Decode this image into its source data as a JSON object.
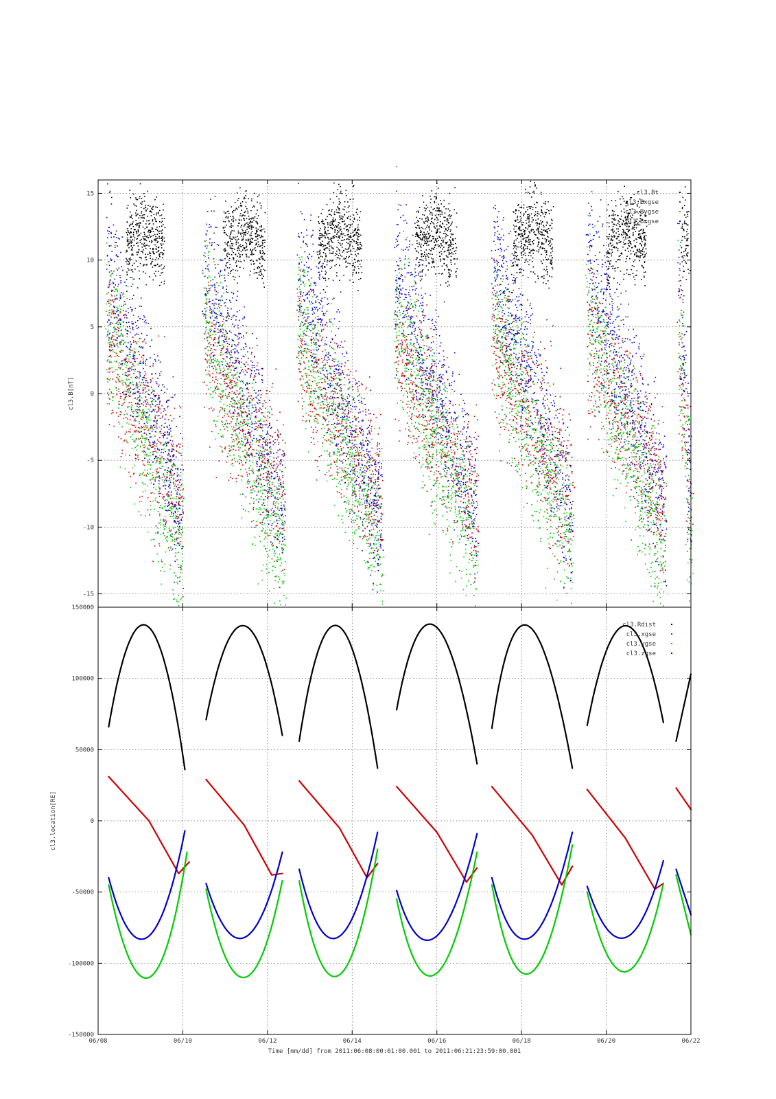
{
  "figure": {
    "top_mark": "-",
    "xlabel": "Time [mm/dd]  from 2011:06:08:00:01:00.001  to  2011:06:21:23:59:00.001",
    "xticks": [
      "06/08",
      "06/10",
      "06/12",
      "06/14",
      "06/16",
      "06/18",
      "06/20",
      "06/22"
    ]
  },
  "colors": {
    "black": "#000000",
    "red": "#cc0000",
    "green": "#00cc00",
    "blue": "#0000cc",
    "grid": "#555555"
  },
  "chart_data": [
    {
      "type": "scatter",
      "ylabel": "cl3.B[nT]",
      "x_range_days": [
        "2011-06-08",
        "2011-06-22"
      ],
      "ylim": [
        -16,
        16
      ],
      "yticks": [
        "15",
        "10",
        "5",
        "0",
        "-5",
        "-10",
        "-15"
      ],
      "ytick_values": [
        15,
        10,
        5,
        0,
        -5,
        -10,
        -15
      ],
      "grid": true,
      "legend_placement": "top-right",
      "legend": [
        "cl3.Bt",
        "cl3.Bxgse",
        "cl3.Bygse",
        "cl3.Bzgse"
      ],
      "series": [
        {
          "color": "black"
        },
        {
          "color": "red"
        },
        {
          "color": "green"
        },
        {
          "color": "blue"
        }
      ],
      "note": "dense per-minute samples; visible bursts roughly 06/08.2-06/10.0, 06/10.5-06/12.4, 06/12.7-06/14.7, 06/15.0-06/17.0, 06/17.3-06/19.2, 06/19.5-06/21.4, 06/21.7-06/22"
    },
    {
      "type": "line",
      "ylabel": "cl3.location[RE]",
      "x_range_days": [
        "2011-06-08",
        "2011-06-22"
      ],
      "ylim": [
        -150000,
        150000
      ],
      "yticks": [
        "150000",
        "100000",
        "50000",
        "0",
        "-50000",
        "-100000",
        "-150000"
      ],
      "ytick_values": [
        150000,
        100000,
        50000,
        0,
        -50000,
        -100000,
        -150000
      ],
      "grid": true,
      "legend_placement": "top-right",
      "legend": [
        "cl3.Rdist",
        "cl3.xgse",
        "cl3.ygse",
        "cl3.zgse"
      ],
      "orbit_segments_day_offset": [
        [
          0.25,
          2.05
        ],
        [
          2.55,
          4.35
        ],
        [
          4.75,
          6.6
        ],
        [
          7.05,
          8.95
        ],
        [
          9.3,
          11.2
        ],
        [
          11.55,
          13.35
        ],
        [
          13.65,
          14.0
        ]
      ],
      "series": [
        {
          "color": "black",
          "segments": [
            [
              [
                0.25,
                66000
              ],
              [
                1.15,
                137000
              ],
              [
                2.05,
                36000
              ]
            ],
            [
              [
                2.55,
                71000
              ],
              [
                3.45,
                137000
              ],
              [
                4.35,
                60000
              ]
            ],
            [
              [
                4.75,
                56000
              ],
              [
                5.65,
                137000
              ],
              [
                6.6,
                37000
              ]
            ],
            [
              [
                7.05,
                78000
              ],
              [
                7.95,
                137000
              ],
              [
                8.95,
                40000
              ]
            ],
            [
              [
                9.3,
                65000
              ],
              [
                10.15,
                137000
              ],
              [
                11.2,
                37000
              ]
            ],
            [
              [
                11.55,
                67000
              ],
              [
                12.45,
                137000
              ],
              [
                13.35,
                69000
              ]
            ],
            [
              [
                13.65,
                56000
              ],
              [
                14.0,
                103000
              ]
            ]
          ]
        },
        {
          "color": "red",
          "segments": [
            [
              [
                0.25,
                31000
              ],
              [
                1.2,
                0
              ],
              [
                1.9,
                -37000
              ],
              [
                2.15,
                -29000
              ]
            ],
            [
              [
                2.55,
                29000
              ],
              [
                3.45,
                -3000
              ],
              [
                4.1,
                -38000
              ],
              [
                4.35,
                -37000
              ]
            ],
            [
              [
                4.75,
                28000
              ],
              [
                5.7,
                -5000
              ],
              [
                6.35,
                -40000
              ],
              [
                6.6,
                -30000
              ]
            ],
            [
              [
                7.05,
                24000
              ],
              [
                8.0,
                -8000
              ],
              [
                8.7,
                -43000
              ],
              [
                8.95,
                -33000
              ]
            ],
            [
              [
                9.3,
                24000
              ],
              [
                10.25,
                -10000
              ],
              [
                10.95,
                -45000
              ],
              [
                11.2,
                -32000
              ]
            ],
            [
              [
                11.55,
                22000
              ],
              [
                12.45,
                -12000
              ],
              [
                13.15,
                -48000
              ],
              [
                13.35,
                -44000
              ]
            ],
            [
              [
                13.65,
                23000
              ],
              [
                14.0,
                8000
              ]
            ]
          ]
        },
        {
          "color": "green",
          "segments": [
            [
              [
                0.25,
                -45000
              ],
              [
                1.2,
                -110000
              ],
              [
                2.1,
                -22000
              ]
            ],
            [
              [
                2.55,
                -48000
              ],
              [
                3.45,
                -110000
              ],
              [
                4.35,
                -42000
              ]
            ],
            [
              [
                4.75,
                -42000
              ],
              [
                5.65,
                -109000
              ],
              [
                6.6,
                -20000
              ]
            ],
            [
              [
                7.05,
                -55000
              ],
              [
                7.95,
                -108000
              ],
              [
                8.95,
                -22000
              ]
            ],
            [
              [
                9.3,
                -45000
              ],
              [
                10.2,
                -107000
              ],
              [
                11.2,
                -17000
              ]
            ],
            [
              [
                11.55,
                -50000
              ],
              [
                12.45,
                -106000
              ],
              [
                13.35,
                -44000
              ]
            ],
            [
              [
                13.65,
                -38000
              ],
              [
                14.0,
                -80000
              ]
            ]
          ]
        },
        {
          "color": "blue",
          "segments": [
            [
              [
                0.25,
                -40000
              ],
              [
                1.15,
                -82000
              ],
              [
                2.05,
                -7000
              ]
            ],
            [
              [
                2.55,
                -44000
              ],
              [
                3.45,
                -82000
              ],
              [
                4.35,
                -22000
              ]
            ],
            [
              [
                4.75,
                -34000
              ],
              [
                5.65,
                -82000
              ],
              [
                6.6,
                -8000
              ]
            ],
            [
              [
                7.05,
                -49000
              ],
              [
                7.95,
                -82000
              ],
              [
                8.95,
                -9000
              ]
            ],
            [
              [
                9.3,
                -40000
              ],
              [
                10.2,
                -82000
              ],
              [
                11.2,
                -8000
              ]
            ],
            [
              [
                11.55,
                -46000
              ],
              [
                12.45,
                -82000
              ],
              [
                13.35,
                -28000
              ]
            ],
            [
              [
                13.65,
                -34000
              ],
              [
                14.0,
                -66000
              ]
            ]
          ]
        }
      ]
    }
  ]
}
